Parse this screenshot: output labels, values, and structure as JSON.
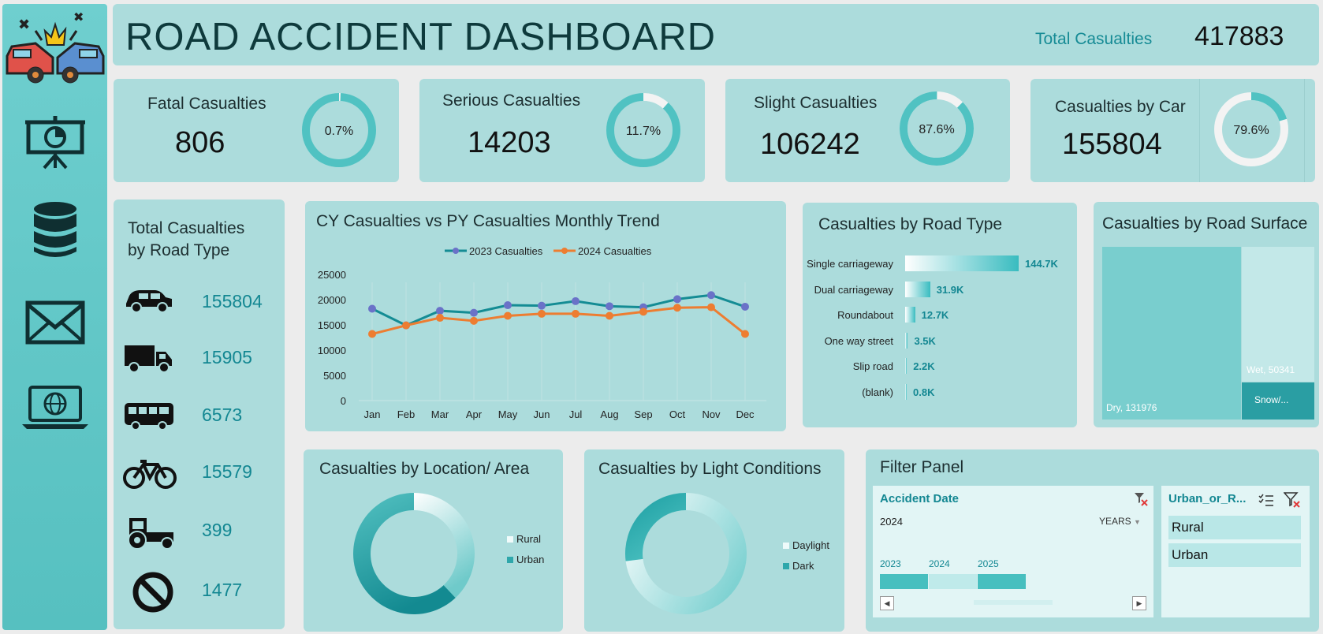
{
  "header": {
    "title": "ROAD ACCIDENT DASHBOARD",
    "total_label": "Total Casualties",
    "total_value": "417883"
  },
  "sidebar": {
    "items": [
      {
        "icon": "car-crash-logo-icon"
      },
      {
        "icon": "presentation-icon"
      },
      {
        "icon": "database-icon"
      },
      {
        "icon": "mail-icon"
      },
      {
        "icon": "laptop-globe-icon"
      }
    ]
  },
  "kpis": {
    "fatal": {
      "title": "Fatal Casualties",
      "value": "806",
      "pct_label": "0.7%",
      "pct": 0.007
    },
    "serious": {
      "title": "Serious Casualties",
      "value": "14203",
      "pct_label": "11.7%",
      "pct": 0.117
    },
    "slight": {
      "title": "Slight Casualties",
      "value": "106242",
      "pct_label": "87.6%",
      "pct": 0.876
    },
    "car": {
      "title": "Casualties by Car",
      "value": "155804",
      "pct_label": "79.6%",
      "pct": 0.796
    }
  },
  "vehicle_panel": {
    "title_line1": "Total Casualties",
    "title_line2": "by Road Type",
    "rows": [
      {
        "icon": "car-icon",
        "value": "155804"
      },
      {
        "icon": "truck-icon",
        "value": "15905"
      },
      {
        "icon": "bus-icon",
        "value": "6573"
      },
      {
        "icon": "bicycle-icon",
        "value": "15579"
      },
      {
        "icon": "tractor-icon",
        "value": "399"
      },
      {
        "icon": "prohibited-icon",
        "value": "1477"
      }
    ]
  },
  "trend": {
    "title": "CY Casualties vs PY Casualties Monthly Trend",
    "legend_2023": "2023 Casualties",
    "legend_2024": "2024 Casualties",
    "color_2023": "#148c94",
    "color_2024": "#ed7d31"
  },
  "road_type": {
    "title": "Casualties by Road Type"
  },
  "surface": {
    "title": "Casualties by Road Surface",
    "dry_label": "Dry, 131976",
    "wet_label": "Wet, 50341",
    "snow_label": "Snow/..."
  },
  "location": {
    "title": "Casualties by Location/ Area",
    "legend": [
      "Rural",
      "Urban"
    ]
  },
  "light": {
    "title": "Casualties by Light Conditions",
    "legend": [
      "Daylight",
      "Dark"
    ]
  },
  "filter": {
    "title": "Filter Panel",
    "date_slicer": {
      "header": "Accident Date",
      "selection": "2024",
      "level": "YEARS",
      "years": [
        "2023",
        "2024",
        "2025"
      ]
    },
    "area_slicer": {
      "header": "Urban_or_R...",
      "items": [
        "Rural",
        "Urban"
      ]
    }
  },
  "chart_data": [
    {
      "type": "line",
      "title": "CY Casualties vs PY Casualties Monthly Trend",
      "categories": [
        "Jan",
        "Feb",
        "Mar",
        "Apr",
        "May",
        "Jun",
        "Jul",
        "Aug",
        "Sep",
        "Oct",
        "Nov",
        "Dec"
      ],
      "series": [
        {
          "name": "2023 Casualties",
          "values": [
            18200,
            14900,
            17800,
            17400,
            18900,
            18800,
            19700,
            18700,
            18500,
            20100,
            20900,
            18600
          ]
        },
        {
          "name": "2024 Casualties",
          "values": [
            13200,
            14900,
            16400,
            15800,
            16800,
            17200,
            17200,
            16800,
            17600,
            18400,
            18500,
            13200
          ]
        }
      ],
      "yticks": [
        "0",
        "5000",
        "10000",
        "15000",
        "20000",
        "25000"
      ],
      "ylim": [
        0,
        25000
      ]
    },
    {
      "type": "bar",
      "title": "Casualties by Road Type",
      "orientation": "horizontal",
      "categories": [
        "Single carriageway",
        "Dual carriageway",
        "Roundabout",
        "One way street",
        "Slip road",
        "(blank)"
      ],
      "values": [
        144700,
        31900,
        12700,
        3500,
        2200,
        800
      ],
      "labels": [
        "144.7K",
        "31.9K",
        "12.7K",
        "3.5K",
        "2.2K",
        "0.8K"
      ]
    },
    {
      "type": "treemap",
      "title": "Casualties by Road Surface",
      "categories": [
        "Dry",
        "Wet",
        "Snow/..."
      ],
      "values": [
        131976,
        50341,
        11000
      ]
    },
    {
      "type": "pie",
      "title": "Casualties by Location/ Area",
      "categories": [
        "Rural",
        "Urban"
      ],
      "values": [
        0.38,
        0.62
      ]
    },
    {
      "type": "pie",
      "title": "Casualties by Light Conditions",
      "categories": [
        "Daylight",
        "Dark"
      ],
      "values": [
        0.73,
        0.27
      ]
    }
  ]
}
